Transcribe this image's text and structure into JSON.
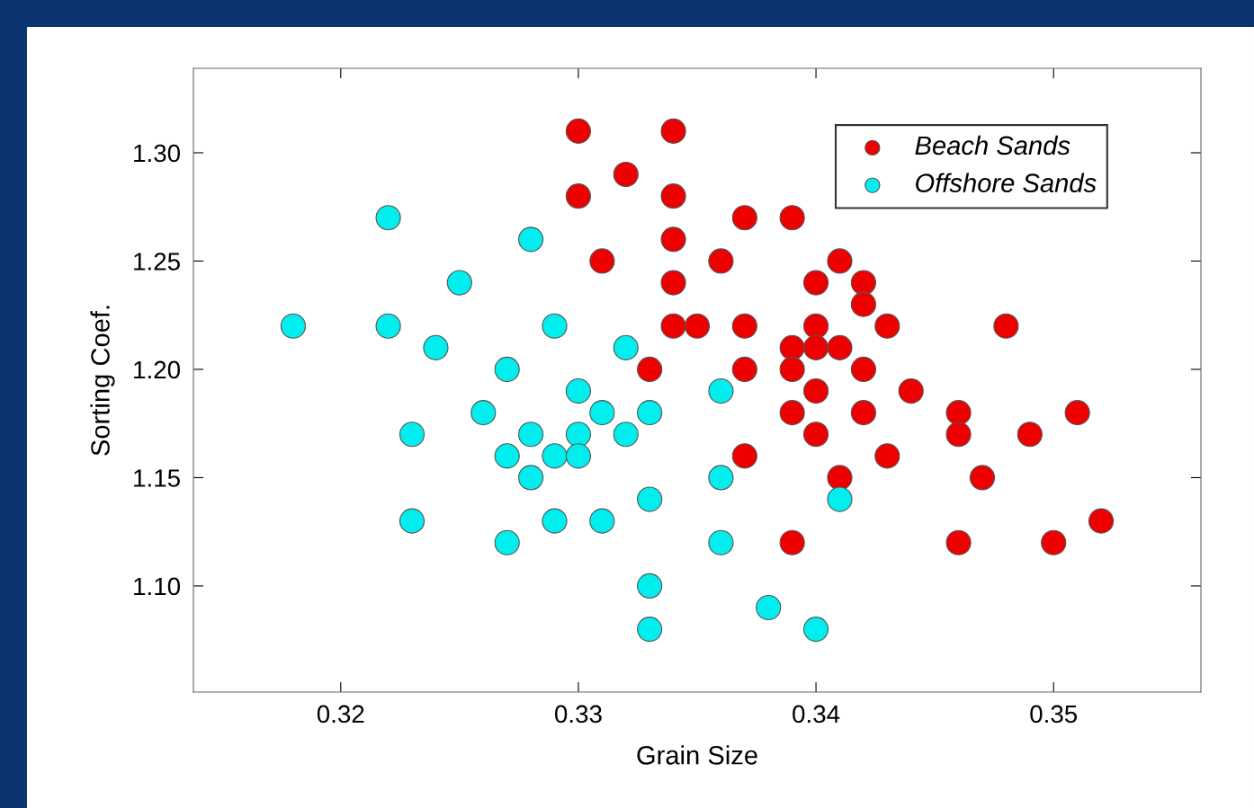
{
  "chart_data": {
    "type": "scatter",
    "xlabel": "Grain Size",
    "ylabel": "Sorting Coef.",
    "xlim": [
      0.3138,
      0.3562
    ],
    "ylim": [
      1.051,
      1.339
    ],
    "xticks": [
      0.32,
      0.33,
      0.34,
      0.35
    ],
    "yticks": [
      {
        "value": 1.1,
        "label": "1.10"
      },
      {
        "value": 1.15,
        "label": "1.15"
      },
      {
        "value": 1.2,
        "label": "1.20"
      },
      {
        "value": 1.25,
        "label": "1.25"
      },
      {
        "value": 1.3,
        "label": "1.30"
      }
    ],
    "grid": false,
    "legend": "top right",
    "marker": "circle",
    "series": [
      {
        "name": "Beach Sands",
        "color": "#ee0000",
        "x": [
          0.33,
          0.334,
          0.332,
          0.33,
          0.334,
          0.337,
          0.339,
          0.334,
          0.331,
          0.336,
          0.341,
          0.334,
          0.34,
          0.342,
          0.342,
          0.334,
          0.335,
          0.337,
          0.34,
          0.343,
          0.348,
          0.339,
          0.34,
          0.341,
          0.333,
          0.337,
          0.339,
          0.342,
          0.34,
          0.344,
          0.339,
          0.342,
          0.346,
          0.351,
          0.34,
          0.346,
          0.349,
          0.337,
          0.343,
          0.341,
          0.347,
          0.352,
          0.339,
          0.346,
          0.35
        ],
        "values": [
          1.31,
          1.31,
          1.29,
          1.28,
          1.28,
          1.27,
          1.27,
          1.26,
          1.25,
          1.25,
          1.25,
          1.24,
          1.24,
          1.24,
          1.23,
          1.22,
          1.22,
          1.22,
          1.22,
          1.22,
          1.22,
          1.21,
          1.21,
          1.21,
          1.2,
          1.2,
          1.2,
          1.2,
          1.19,
          1.19,
          1.18,
          1.18,
          1.18,
          1.18,
          1.17,
          1.17,
          1.17,
          1.16,
          1.16,
          1.15,
          1.15,
          1.13,
          1.12,
          1.12,
          1.12
        ]
      },
      {
        "name": "Offshore Sands",
        "color": "#00eeee",
        "x": [
          0.322,
          0.328,
          0.325,
          0.318,
          0.322,
          0.329,
          0.324,
          0.332,
          0.327,
          0.33,
          0.336,
          0.326,
          0.331,
          0.333,
          0.323,
          0.328,
          0.33,
          0.332,
          0.327,
          0.329,
          0.33,
          0.328,
          0.336,
          0.333,
          0.341,
          0.323,
          0.329,
          0.331,
          0.327,
          0.336,
          0.333,
          0.338,
          0.333,
          0.34
        ],
        "values": [
          1.27,
          1.26,
          1.24,
          1.22,
          1.22,
          1.22,
          1.21,
          1.21,
          1.2,
          1.19,
          1.19,
          1.18,
          1.18,
          1.18,
          1.17,
          1.17,
          1.17,
          1.17,
          1.16,
          1.16,
          1.16,
          1.15,
          1.15,
          1.14,
          1.14,
          1.13,
          1.13,
          1.13,
          1.12,
          1.12,
          1.1,
          1.09,
          1.08,
          1.08
        ]
      }
    ]
  }
}
